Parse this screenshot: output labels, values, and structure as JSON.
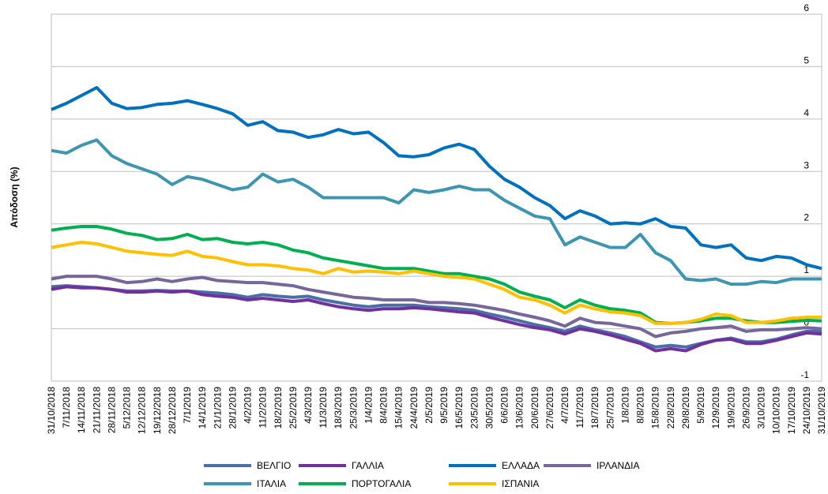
{
  "chart_data": {
    "type": "line",
    "y_label": "Απόδοση (%)",
    "categories": [
      "31/10/2018",
      "7/11/2018",
      "14/11/2018",
      "21/11/2018",
      "28/11/2018",
      "5/12/2018",
      "12/12/2018",
      "19/12/2018",
      "28/12/2018",
      "7/1/2019",
      "14/1/2019",
      "21/1/2019",
      "28/1/2019",
      "4/2/2019",
      "11/2/2019",
      "18/2/2019",
      "25/2/2019",
      "4/3/2019",
      "11/3/2019",
      "18/3/2019",
      "25/3/2019",
      "1/4/2019",
      "8/4/2019",
      "15/4/2019",
      "24/4/2019",
      "2/5/2019",
      "9/5/2019",
      "16/5/2019",
      "23/5/2019",
      "30/5/2019",
      "6/6/2019",
      "13/6/2019",
      "20/6/2019",
      "27/6/2019",
      "4/7/2019",
      "11/7/2019",
      "18/7/2019",
      "25/7/2019",
      "1/8/2019",
      "8/8/2019",
      "15/8/2019",
      "22/8/2019",
      "29/8/2019",
      "5/9/2019",
      "12/9/2019",
      "19/9/2019",
      "26/9/2019",
      "3/10/2019",
      "10/10/2019",
      "17/10/2019",
      "24/10/2019",
      "31/10/2019"
    ],
    "series": [
      {
        "name": "ΒΕΛΓΙΟ",
        "color": "#4a6fa5",
        "values": [
          0.8,
          0.82,
          0.8,
          0.78,
          0.75,
          0.72,
          0.72,
          0.73,
          0.72,
          0.72,
          0.7,
          0.68,
          0.65,
          0.6,
          0.65,
          0.62,
          0.6,
          0.62,
          0.55,
          0.5,
          0.45,
          0.42,
          0.45,
          0.45,
          0.45,
          0.42,
          0.4,
          0.38,
          0.35,
          0.28,
          0.22,
          0.15,
          0.08,
          0.02,
          -0.05,
          0.05,
          -0.02,
          -0.08,
          -0.15,
          -0.25,
          -0.35,
          -0.32,
          -0.35,
          -0.28,
          -0.22,
          -0.18,
          -0.25,
          -0.25,
          -0.2,
          -0.12,
          -0.05,
          -0.05
        ]
      },
      {
        "name": "ΓΑΛΛΙΑ",
        "color": "#7030a0",
        "values": [
          0.75,
          0.8,
          0.78,
          0.78,
          0.75,
          0.7,
          0.7,
          0.72,
          0.7,
          0.72,
          0.65,
          0.62,
          0.6,
          0.55,
          0.58,
          0.55,
          0.52,
          0.55,
          0.48,
          0.42,
          0.38,
          0.35,
          0.38,
          0.38,
          0.4,
          0.38,
          0.35,
          0.32,
          0.3,
          0.22,
          0.15,
          0.08,
          0.02,
          -0.02,
          -0.1,
          0.0,
          -0.05,
          -0.12,
          -0.2,
          -0.28,
          -0.42,
          -0.38,
          -0.42,
          -0.3,
          -0.22,
          -0.2,
          -0.28,
          -0.28,
          -0.22,
          -0.15,
          -0.08,
          -0.1
        ]
      },
      {
        "name": "ΕΛΛΑΔΑ",
        "color": "#0070c0",
        "values": [
          4.18,
          4.3,
          4.45,
          4.6,
          4.3,
          4.2,
          4.22,
          4.28,
          4.3,
          4.35,
          4.28,
          4.2,
          4.1,
          3.88,
          3.95,
          3.78,
          3.75,
          3.65,
          3.7,
          3.8,
          3.72,
          3.75,
          3.55,
          3.3,
          3.28,
          3.32,
          3.45,
          3.52,
          3.42,
          3.1,
          2.85,
          2.7,
          2.5,
          2.35,
          2.1,
          2.25,
          2.15,
          2.0,
          2.02,
          2.0,
          2.1,
          1.95,
          1.92,
          1.6,
          1.55,
          1.6,
          1.35,
          1.3,
          1.38,
          1.35,
          1.22,
          1.15
        ]
      },
      {
        "name": "ΙΡΛΑΝΔΙΑ",
        "color": "#76669c",
        "values": [
          0.95,
          1.0,
          1.0,
          1.0,
          0.95,
          0.88,
          0.9,
          0.95,
          0.9,
          0.95,
          0.98,
          0.92,
          0.9,
          0.88,
          0.88,
          0.85,
          0.82,
          0.75,
          0.7,
          0.65,
          0.6,
          0.58,
          0.55,
          0.55,
          0.55,
          0.5,
          0.5,
          0.48,
          0.45,
          0.4,
          0.35,
          0.28,
          0.22,
          0.15,
          0.05,
          0.2,
          0.12,
          0.1,
          0.05,
          0.0,
          -0.15,
          -0.08,
          -0.05,
          0.0,
          0.02,
          0.05,
          -0.05,
          -0.02,
          -0.02,
          0.0,
          0.02,
          0.0
        ]
      },
      {
        "name": "ΙΤΑΛΙΑ",
        "color": "#3d96b1",
        "values": [
          3.4,
          3.35,
          3.5,
          3.6,
          3.3,
          3.15,
          3.05,
          2.95,
          2.75,
          2.9,
          2.85,
          2.75,
          2.65,
          2.7,
          2.95,
          2.8,
          2.85,
          2.7,
          2.5,
          2.5,
          2.5,
          2.5,
          2.5,
          2.4,
          2.65,
          2.6,
          2.65,
          2.72,
          2.65,
          2.65,
          2.45,
          2.3,
          2.15,
          2.1,
          1.6,
          1.75,
          1.65,
          1.55,
          1.55,
          1.8,
          1.45,
          1.3,
          0.95,
          0.92,
          0.95,
          0.85,
          0.85,
          0.9,
          0.88,
          0.95,
          0.95,
          0.95
        ]
      },
      {
        "name": "ΠΟΡΤΟΓΑΛΙΑ",
        "color": "#00b050",
        "values": [
          1.88,
          1.92,
          1.95,
          1.95,
          1.9,
          1.82,
          1.78,
          1.7,
          1.72,
          1.8,
          1.7,
          1.72,
          1.65,
          1.62,
          1.65,
          1.6,
          1.5,
          1.45,
          1.35,
          1.3,
          1.25,
          1.2,
          1.15,
          1.15,
          1.15,
          1.1,
          1.05,
          1.05,
          1.0,
          0.95,
          0.85,
          0.7,
          0.62,
          0.55,
          0.4,
          0.55,
          0.45,
          0.38,
          0.35,
          0.3,
          0.12,
          0.1,
          0.12,
          0.15,
          0.2,
          0.2,
          0.15,
          0.12,
          0.12,
          0.14,
          0.16,
          0.15
        ]
      },
      {
        "name": "ΙΣΠΑΝΙΑ",
        "color": "#ffc000",
        "values": [
          1.55,
          1.6,
          1.65,
          1.62,
          1.55,
          1.48,
          1.45,
          1.42,
          1.4,
          1.48,
          1.38,
          1.35,
          1.28,
          1.22,
          1.22,
          1.2,
          1.15,
          1.12,
          1.05,
          1.15,
          1.08,
          1.1,
          1.08,
          1.05,
          1.1,
          1.05,
          1.0,
          0.98,
          0.95,
          0.85,
          0.75,
          0.6,
          0.55,
          0.45,
          0.3,
          0.45,
          0.38,
          0.32,
          0.3,
          0.25,
          0.1,
          0.1,
          0.12,
          0.18,
          0.28,
          0.25,
          0.12,
          0.12,
          0.15,
          0.2,
          0.22,
          0.22
        ]
      }
    ],
    "ylim": [
      -1,
      6
    ],
    "yticks": [
      -1,
      0,
      1,
      2,
      3,
      4,
      5,
      6
    ],
    "grid": true
  }
}
